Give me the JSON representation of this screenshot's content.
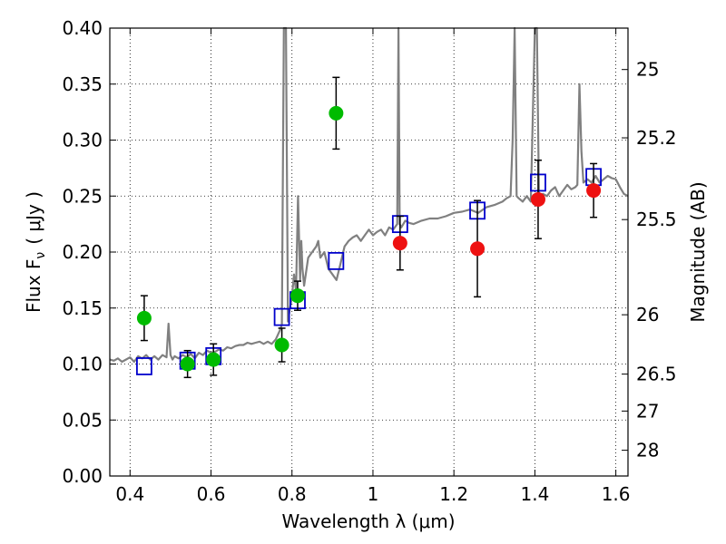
{
  "chart_data": {
    "type": "scatter",
    "xlabel": "Wavelength  λ (μm)",
    "ylabel": "Flux  F",
    "ylabel_sub": "ν",
    "ylabel_unit": "( μJy )",
    "y2label": "Magnitude (AB)",
    "xlim": [
      0.35,
      1.63
    ],
    "ylim": [
      0.0,
      0.4
    ],
    "grid": true,
    "x_ticks": [
      0.4,
      0.6,
      0.8,
      1.0,
      1.2,
      1.4,
      1.6
    ],
    "x_tick_labels": [
      "0.4",
      "0.6",
      "0.8",
      "1",
      "1.2",
      "1.4",
      "1.6"
    ],
    "y_ticks": [
      0.0,
      0.05,
      0.1,
      0.15,
      0.2,
      0.25,
      0.3,
      0.35,
      0.4
    ],
    "y_tick_labels": [
      "0.00",
      "0.05",
      "0.10",
      "0.15",
      "0.20",
      "0.25",
      "0.30",
      "0.35",
      "0.40"
    ],
    "y2_ticks": [
      {
        "label": "25",
        "flux": 0.363
      },
      {
        "label": "25.2",
        "flux": 0.302
      },
      {
        "label": "25.5",
        "flux": 0.229
      },
      {
        "label": "26",
        "flux": 0.144
      },
      {
        "label": "26.5",
        "flux": 0.091
      },
      {
        "label": "27",
        "flux": 0.058
      },
      {
        "label": "28",
        "flux": 0.023
      }
    ],
    "colors": {
      "spectrum": "#808080",
      "green_points": "#00bb00",
      "red_points": "#ee1111",
      "model_squares": "#0000cc",
      "error_bars": "#000000",
      "grid": "#000000"
    },
    "series": [
      {
        "name": "spectrum",
        "kind": "line",
        "x": [
          0.35,
          0.36,
          0.37,
          0.38,
          0.39,
          0.4,
          0.41,
          0.42,
          0.43,
          0.44,
          0.45,
          0.46,
          0.47,
          0.48,
          0.49,
          0.495,
          0.5,
          0.505,
          0.51,
          0.52,
          0.53,
          0.54,
          0.55,
          0.56,
          0.57,
          0.58,
          0.59,
          0.6,
          0.61,
          0.62,
          0.63,
          0.64,
          0.65,
          0.66,
          0.67,
          0.68,
          0.69,
          0.7,
          0.71,
          0.72,
          0.73,
          0.74,
          0.75,
          0.76,
          0.77,
          0.775,
          0.78,
          0.785,
          0.79,
          0.795,
          0.8,
          0.805,
          0.81,
          0.815,
          0.82,
          0.823,
          0.826,
          0.83,
          0.84,
          0.85,
          0.86,
          0.865,
          0.87,
          0.88,
          0.89,
          0.9,
          0.91,
          0.92,
          0.93,
          0.94,
          0.95,
          0.96,
          0.97,
          0.98,
          0.99,
          1.0,
          1.01,
          1.02,
          1.03,
          1.04,
          1.05,
          1.06,
          1.063,
          1.066,
          1.07,
          1.08,
          1.09,
          1.1,
          1.12,
          1.14,
          1.16,
          1.18,
          1.2,
          1.22,
          1.24,
          1.26,
          1.28,
          1.3,
          1.32,
          1.33,
          1.34,
          1.345,
          1.35,
          1.355,
          1.36,
          1.37,
          1.38,
          1.39,
          1.4,
          1.405,
          1.41,
          1.42,
          1.43,
          1.44,
          1.45,
          1.46,
          1.47,
          1.48,
          1.49,
          1.5,
          1.505,
          1.51,
          1.515,
          1.52,
          1.53,
          1.54,
          1.55,
          1.56,
          1.57,
          1.58,
          1.59,
          1.6,
          1.61,
          1.62,
          1.63
        ],
        "y": [
          0.104,
          0.103,
          0.105,
          0.102,
          0.104,
          0.106,
          0.102,
          0.107,
          0.105,
          0.108,
          0.104,
          0.107,
          0.104,
          0.108,
          0.106,
          0.136,
          0.108,
          0.104,
          0.107,
          0.105,
          0.108,
          0.106,
          0.109,
          0.105,
          0.11,
          0.108,
          0.112,
          0.11,
          0.111,
          0.113,
          0.112,
          0.115,
          0.114,
          0.116,
          0.117,
          0.117,
          0.119,
          0.118,
          0.119,
          0.12,
          0.118,
          0.12,
          0.118,
          0.122,
          0.13,
          0.135,
          0.4,
          0.4,
          0.138,
          0.15,
          0.16,
          0.18,
          0.165,
          0.25,
          0.175,
          0.21,
          0.185,
          0.17,
          0.195,
          0.2,
          0.205,
          0.21,
          0.195,
          0.2,
          0.185,
          0.18,
          0.175,
          0.19,
          0.205,
          0.21,
          0.213,
          0.215,
          0.21,
          0.215,
          0.22,
          0.215,
          0.218,
          0.22,
          0.215,
          0.222,
          0.22,
          0.225,
          0.4,
          0.225,
          0.222,
          0.228,
          0.226,
          0.225,
          0.228,
          0.23,
          0.23,
          0.232,
          0.235,
          0.236,
          0.238,
          0.235,
          0.24,
          0.242,
          0.245,
          0.248,
          0.25,
          0.3,
          0.4,
          0.25,
          0.248,
          0.245,
          0.25,
          0.245,
          0.4,
          0.4,
          0.25,
          0.252,
          0.25,
          0.255,
          0.258,
          0.25,
          0.255,
          0.26,
          0.256,
          0.258,
          0.26,
          0.35,
          0.29,
          0.262,
          0.265,
          0.262,
          0.268,
          0.262,
          0.265,
          0.268,
          0.266,
          0.265,
          0.258,
          0.252,
          0.25
        ]
      },
      {
        "name": "green photometry",
        "kind": "points",
        "x": [
          0.435,
          0.542,
          0.606,
          0.775,
          0.814,
          0.909
        ],
        "y": [
          0.141,
          0.1,
          0.104,
          0.117,
          0.161,
          0.324
        ],
        "err": [
          0.02,
          0.012,
          0.014,
          0.015,
          0.013,
          0.032
        ]
      },
      {
        "name": "red photometry",
        "kind": "points",
        "x": [
          1.067,
          1.258,
          1.408,
          1.545
        ],
        "y": [
          0.208,
          0.203,
          0.247,
          0.255
        ],
        "err": [
          0.024,
          0.043,
          0.035,
          0.024
        ]
      },
      {
        "name": "model fluxes",
        "kind": "squares",
        "x": [
          0.435,
          0.542,
          0.606,
          0.775,
          0.814,
          0.909,
          1.067,
          1.258,
          1.408,
          1.545
        ],
        "y": [
          0.098,
          0.103,
          0.107,
          0.142,
          0.157,
          0.192,
          0.225,
          0.237,
          0.262,
          0.267
        ]
      }
    ]
  }
}
